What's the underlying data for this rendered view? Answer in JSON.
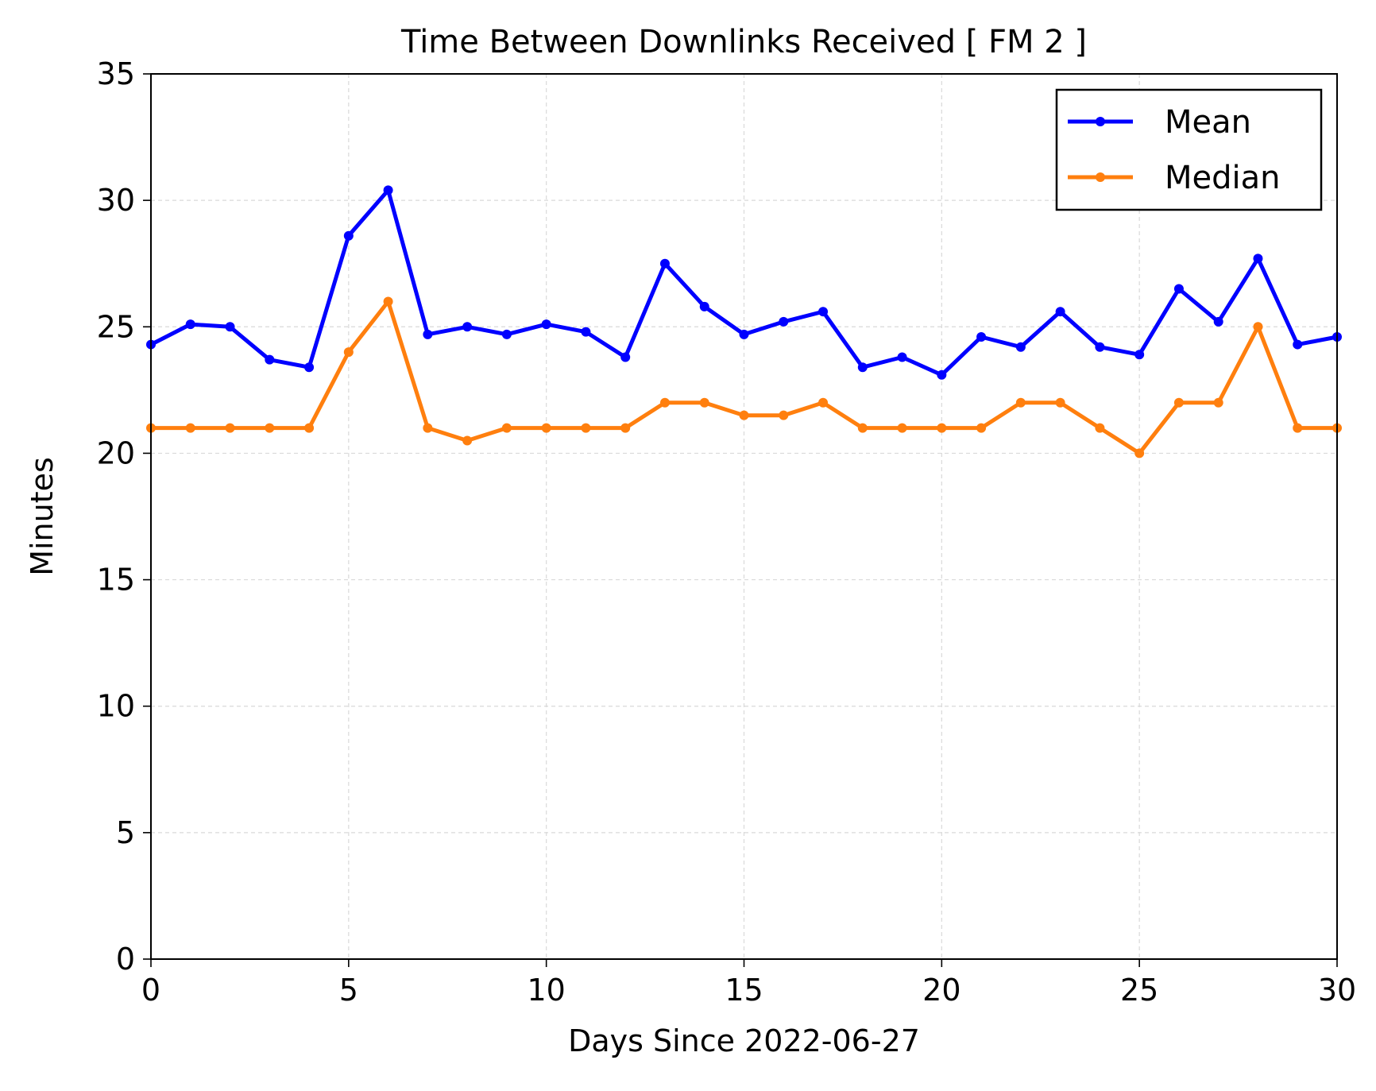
{
  "chart_data": {
    "type": "line",
    "title": "Time Between Downlinks Received [ FM 2 ]",
    "xlabel": "Days Since 2022-06-27",
    "ylabel": "Minutes",
    "xlim": [
      0,
      30
    ],
    "ylim": [
      0,
      35
    ],
    "xticks": [
      0,
      5,
      10,
      15,
      20,
      25,
      30
    ],
    "yticks": [
      0,
      5,
      10,
      15,
      20,
      25,
      30,
      35
    ],
    "grid": true,
    "legend_position": "top-right",
    "x": [
      0,
      1,
      2,
      3,
      4,
      5,
      6,
      7,
      8,
      9,
      10,
      11,
      12,
      13,
      14,
      15,
      16,
      17,
      18,
      19,
      20,
      21,
      22,
      23,
      24,
      25,
      26,
      27,
      28,
      29,
      30
    ],
    "series": [
      {
        "name": "Mean",
        "color": "#0000ff",
        "values": [
          24.3,
          25.1,
          25.0,
          23.7,
          23.4,
          28.6,
          30.4,
          24.7,
          25.0,
          24.7,
          25.1,
          24.8,
          23.8,
          27.5,
          25.8,
          24.7,
          25.2,
          25.6,
          23.4,
          23.8,
          23.1,
          24.6,
          24.2,
          25.6,
          24.2,
          23.9,
          26.5,
          25.2,
          27.7,
          24.3,
          24.6
        ]
      },
      {
        "name": "Median",
        "color": "#ff7f0e",
        "values": [
          21,
          21,
          21,
          21,
          21,
          24,
          26,
          21,
          20.5,
          21,
          21,
          21,
          21,
          22,
          22,
          21.5,
          21.5,
          22,
          21,
          21,
          21,
          21,
          22,
          22,
          21,
          20,
          22,
          22,
          25,
          21,
          21
        ]
      }
    ]
  }
}
